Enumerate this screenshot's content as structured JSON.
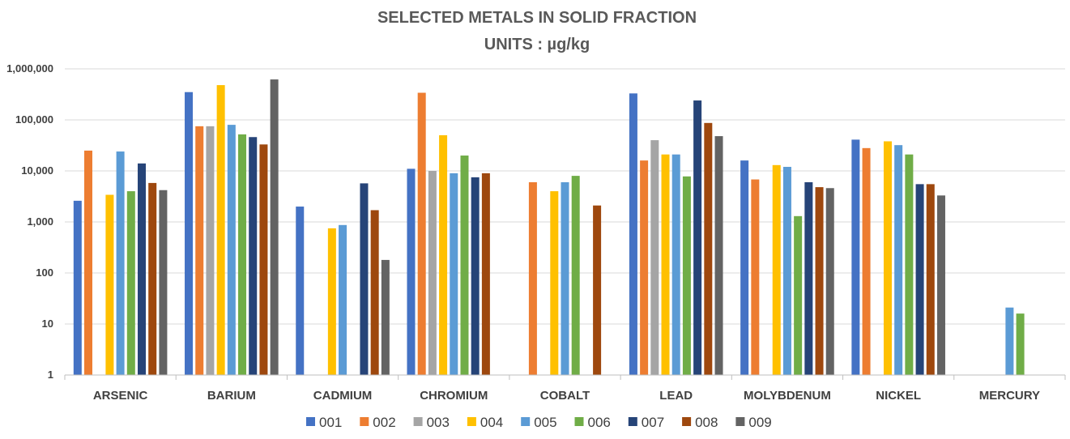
{
  "chart_data": {
    "type": "bar",
    "title": "SELECTED METALS IN SOLID FRACTION",
    "subtitle": "UNITS : µg/kg",
    "xlabel": "",
    "ylabel": "",
    "yscale": "log",
    "ylim": [
      1,
      1000000
    ],
    "ytick_values": [
      1,
      10,
      100,
      1000,
      10000,
      100000,
      1000000
    ],
    "ytick_labels": [
      "1",
      "10",
      "100",
      "1,000",
      "10,000",
      "100,000",
      "1,000,000"
    ],
    "grid": true,
    "legend_position": "bottom",
    "categories": [
      "ARSENIC",
      "BARIUM",
      "CADMIUM",
      "CHROMIUM",
      "COBALT",
      "LEAD",
      "MOLYBDENUM",
      "NICKEL",
      "MERCURY"
    ],
    "series": [
      {
        "name": "001",
        "color": "#4472C4",
        "values": [
          2600,
          350000,
          2000,
          11000,
          null,
          330000,
          16000,
          41000,
          null
        ]
      },
      {
        "name": "002",
        "color": "#ED7D31",
        "values": [
          25000,
          75000,
          null,
          340000,
          6000,
          16000,
          6800,
          28000,
          null
        ]
      },
      {
        "name": "003",
        "color": "#A5A5A5",
        "values": [
          null,
          75000,
          null,
          10000,
          null,
          40000,
          null,
          null,
          null
        ]
      },
      {
        "name": "004",
        "color": "#FFC000",
        "values": [
          3400,
          480000,
          750,
          50000,
          4000,
          21000,
          13000,
          38000,
          null
        ]
      },
      {
        "name": "005",
        "color": "#5B9BD5",
        "values": [
          24000,
          80000,
          870,
          9000,
          6000,
          21000,
          12000,
          32000,
          21
        ]
      },
      {
        "name": "006",
        "color": "#70AD47",
        "values": [
          4000,
          52000,
          null,
          20000,
          8000,
          7800,
          1300,
          21000,
          16
        ]
      },
      {
        "name": "007",
        "color": "#264478",
        "values": [
          14000,
          46000,
          5700,
          7500,
          null,
          240000,
          6000,
          5500,
          null
        ]
      },
      {
        "name": "008",
        "color": "#9E480E",
        "values": [
          5800,
          33000,
          1700,
          9000,
          2100,
          87000,
          4800,
          5500,
          null
        ]
      },
      {
        "name": "009",
        "color": "#636363",
        "values": [
          4200,
          620000,
          180,
          null,
          null,
          48000,
          4600,
          3300,
          null
        ]
      }
    ]
  }
}
